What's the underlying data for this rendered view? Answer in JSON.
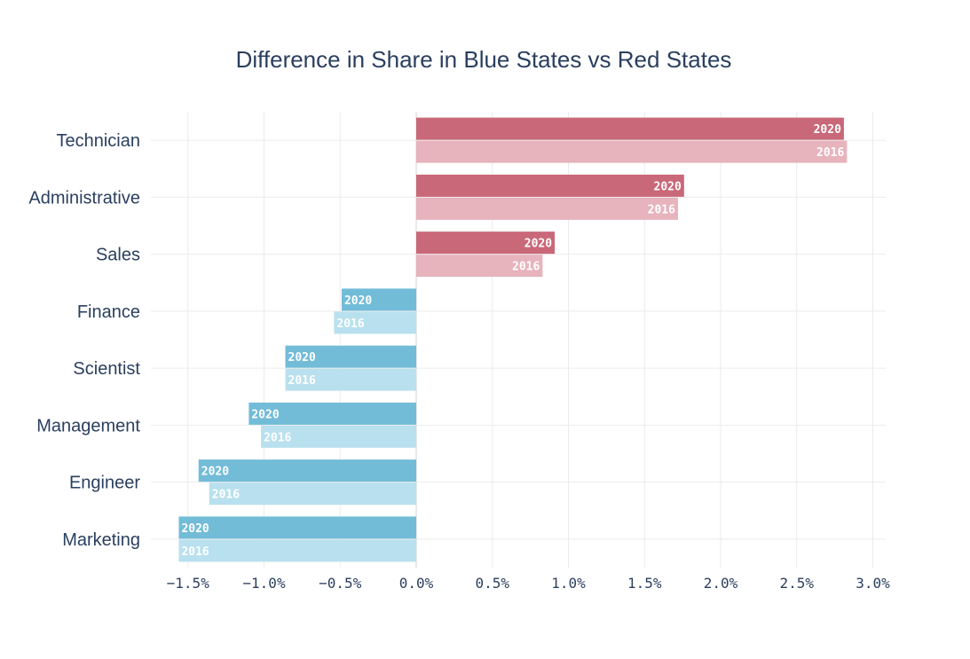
{
  "chart_data": {
    "type": "bar",
    "orientation": "horizontal",
    "title": "Difference in Share in Blue States vs Red States",
    "xlabel": "",
    "ylabel": "",
    "xlim": [
      -1.75,
      3.1
    ],
    "tick_values": [
      -1.5,
      -1.0,
      -0.5,
      0.0,
      0.5,
      1.0,
      1.5,
      2.0,
      2.5,
      3.0
    ],
    "tick_labels": [
      "−1.5%",
      "−1.0%",
      "−0.5%",
      "0.0%",
      "0.5%",
      "1.0%",
      "1.5%",
      "2.0%",
      "2.5%",
      "3.0%"
    ],
    "categories": [
      "Technician",
      "Administrative",
      "Sales",
      "Finance",
      "Scientist",
      "Management",
      "Engineer",
      "Marketing"
    ],
    "series": [
      {
        "name": "2020",
        "values": [
          2.81,
          1.76,
          0.91,
          -0.49,
          -0.86,
          -1.1,
          -1.43,
          -1.56
        ]
      },
      {
        "name": "2016",
        "values": [
          2.83,
          1.72,
          0.83,
          -0.54,
          -0.86,
          -1.02,
          -1.36,
          -1.56
        ]
      }
    ],
    "colors": {
      "positive_2020": "#c96878",
      "positive_2016": "#e7b3bc",
      "negative_2020": "#72bcd8",
      "negative_2016": "#b9e0ee"
    },
    "grid": true,
    "legend": "none"
  }
}
